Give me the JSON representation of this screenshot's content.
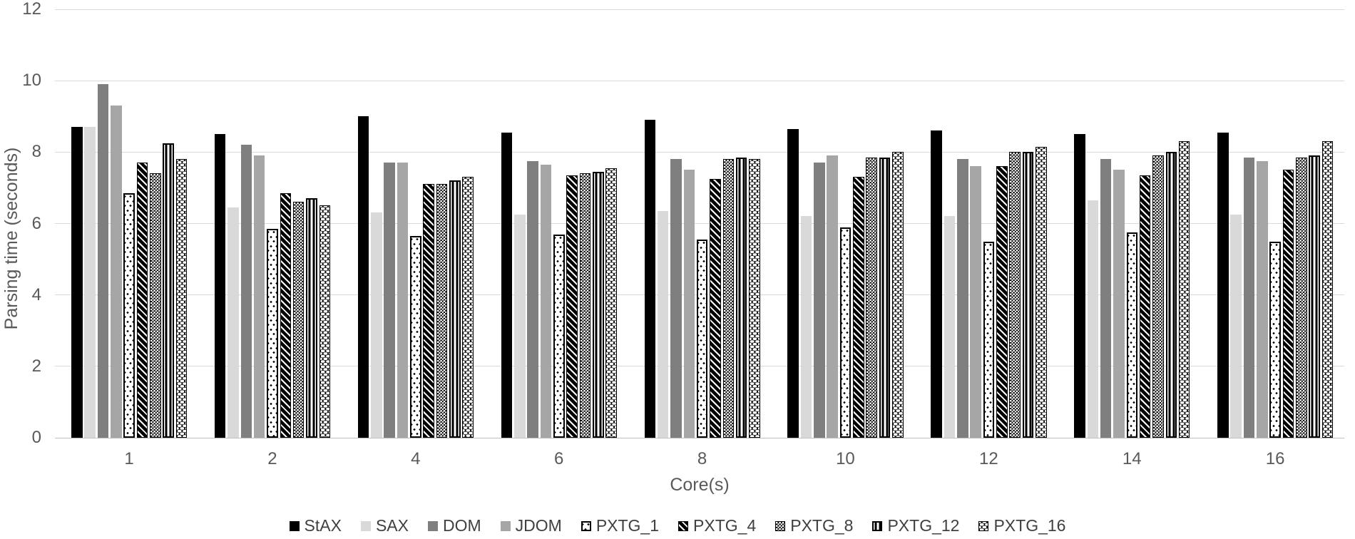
{
  "chart_data": {
    "type": "bar",
    "title": "",
    "xlabel": "Core(s)",
    "ylabel": "Parsing time (seconds)",
    "ylim": [
      0,
      12
    ],
    "yticks": [
      0,
      2,
      4,
      6,
      8,
      10,
      12
    ],
    "grid": true,
    "legend_position": "bottom",
    "categories": [
      "1",
      "2",
      "4",
      "6",
      "8",
      "10",
      "12",
      "14",
      "16"
    ],
    "series": [
      {
        "name": "StAX",
        "pattern": "solid-black",
        "values": [
          8.7,
          8.5,
          9.0,
          8.55,
          8.9,
          8.65,
          8.6,
          8.5,
          8.55
        ]
      },
      {
        "name": "SAX",
        "pattern": "solid-light-gray",
        "values": [
          8.7,
          6.45,
          6.3,
          6.25,
          6.35,
          6.2,
          6.2,
          6.65,
          6.25
        ]
      },
      {
        "name": "DOM",
        "pattern": "solid-dark-gray",
        "values": [
          9.9,
          8.2,
          7.7,
          7.75,
          7.8,
          7.7,
          7.8,
          7.8,
          7.85
        ]
      },
      {
        "name": "JDOM",
        "pattern": "solid-mid-gray",
        "values": [
          9.3,
          7.9,
          7.7,
          7.65,
          7.5,
          7.9,
          7.6,
          7.5,
          7.75
        ]
      },
      {
        "name": "PXTG_1",
        "pattern": "dotted-white-outline",
        "values": [
          6.85,
          5.85,
          5.65,
          5.7,
          5.55,
          5.9,
          5.5,
          5.75,
          5.5
        ]
      },
      {
        "name": "PXTG_4",
        "pattern": "diagonal-hatch",
        "values": [
          7.7,
          6.85,
          7.1,
          7.35,
          7.25,
          7.3,
          7.6,
          7.35,
          7.5
        ]
      },
      {
        "name": "PXTG_8",
        "pattern": "fine-checker",
        "values": [
          7.4,
          6.6,
          7.1,
          7.4,
          7.8,
          7.85,
          8.0,
          7.9,
          7.85
        ]
      },
      {
        "name": "PXTG_12",
        "pattern": "vertical-stripe-outline",
        "values": [
          8.25,
          6.7,
          7.2,
          7.45,
          7.85,
          7.85,
          8.0,
          8.0,
          7.9
        ]
      },
      {
        "name": "PXTG_16",
        "pattern": "checkerboard",
        "values": [
          7.8,
          6.5,
          7.3,
          7.55,
          7.8,
          8.0,
          8.15,
          8.3,
          8.3
        ]
      }
    ],
    "colors": {
      "background": "#ffffff",
      "axis_text": "#595959",
      "legend_text": "#404040",
      "gridline": "#d9d9d9",
      "solid_black": "#000000",
      "solid_light_gray": "#d9d9d9",
      "solid_dark_gray": "#7f7f7f",
      "solid_mid_gray": "#a6a6a6"
    }
  }
}
